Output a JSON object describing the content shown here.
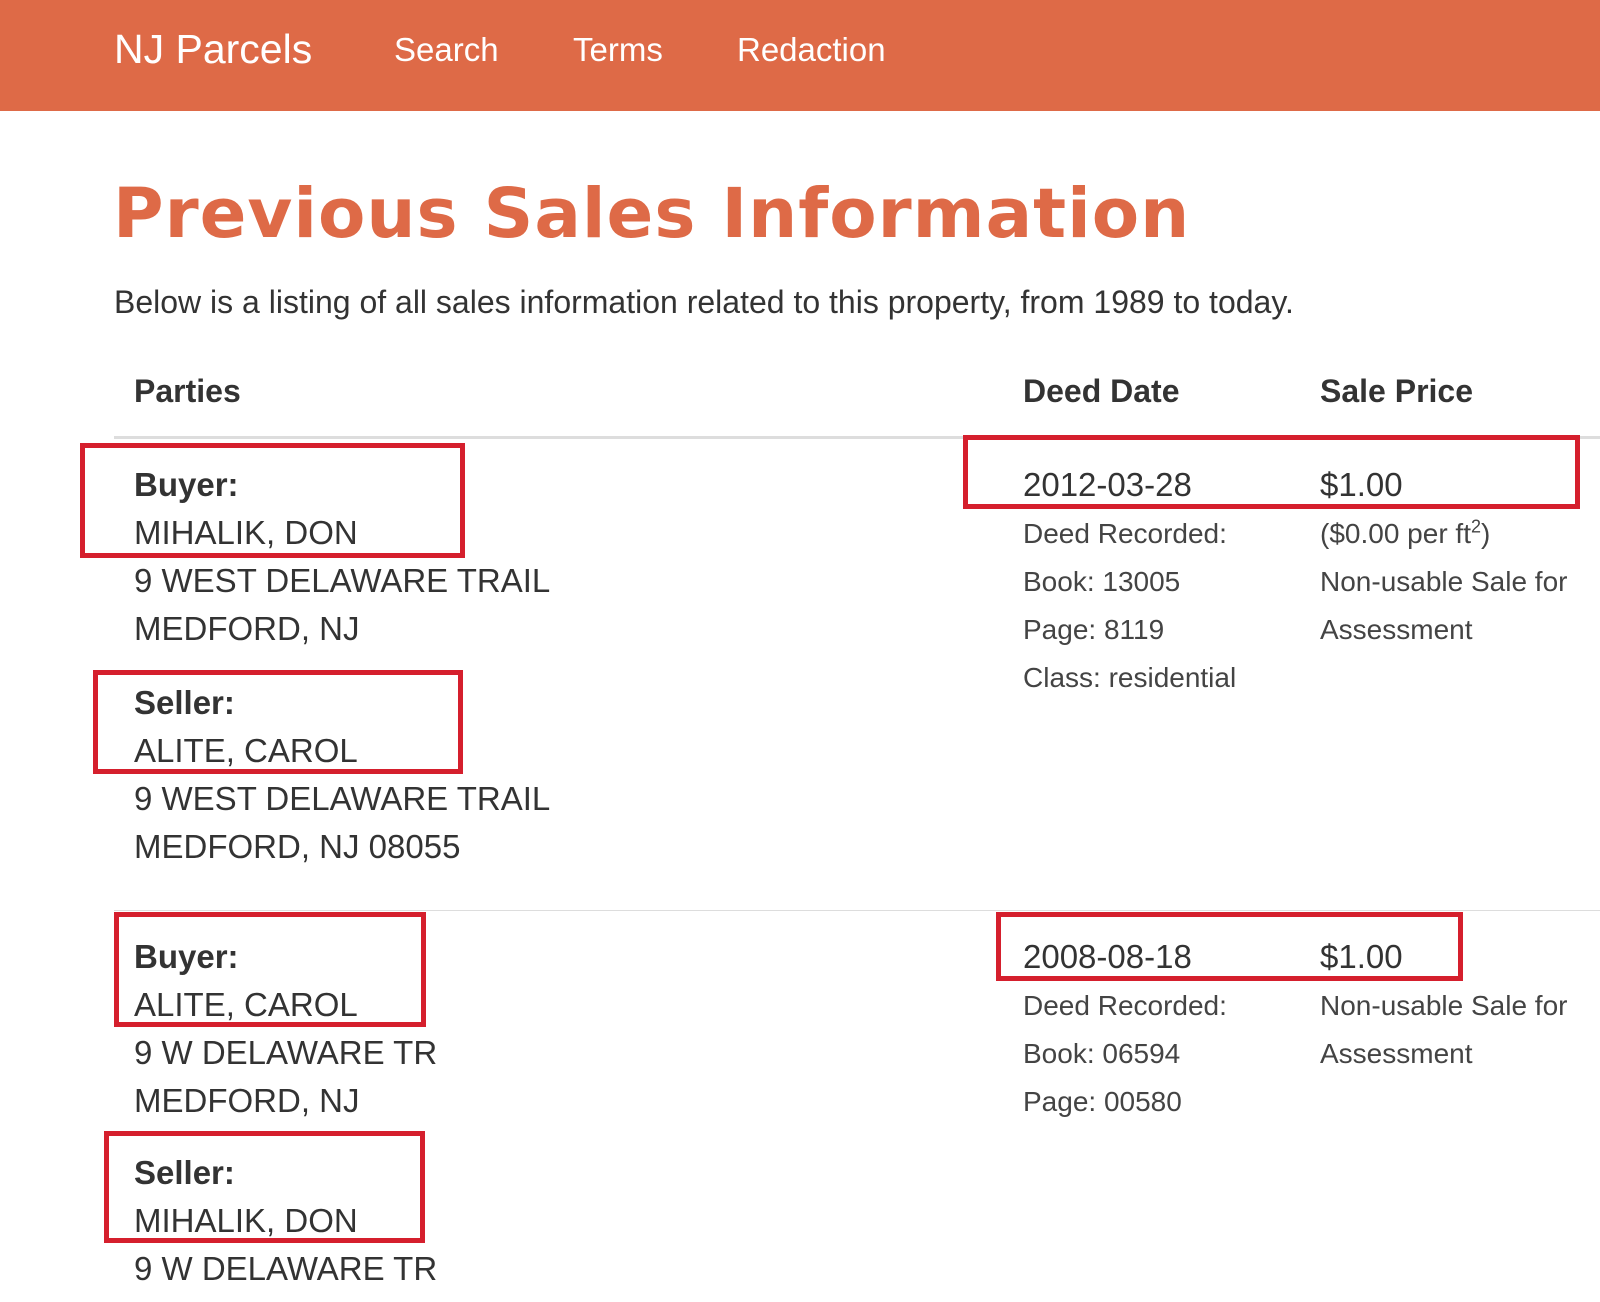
{
  "nav": {
    "brand": "NJ Parcels",
    "links": [
      "Search",
      "Terms",
      "Redaction"
    ]
  },
  "page": {
    "title": "Previous Sales Information",
    "intro": "Below is a listing of all sales information related to this property, from 1989 to today."
  },
  "table": {
    "headers": {
      "parties": "Parties",
      "deed_date": "Deed Date",
      "sale_price": "Sale Price"
    },
    "sales": [
      {
        "buyer_label": "Buyer:",
        "buyer_name": "MIHALIK, DON",
        "buyer_address": [
          "9 WEST DELAWARE TRAIL",
          "MEDFORD, NJ"
        ],
        "seller_label": "Seller:",
        "seller_name": "ALITE, CAROL",
        "seller_address": [
          "9 WEST DELAWARE TRAIL",
          "MEDFORD, NJ 08055"
        ],
        "deed_date": "2012-03-28",
        "deed_recorded": "Deed Recorded:",
        "book": "Book: 13005",
        "page": "Page: 8119",
        "class": "Class: residential",
        "sale_price": "$1.00",
        "per_ft_prefix": "($0.00 per ft",
        "per_ft_sup": "2",
        "per_ft_suffix": ")",
        "note": [
          "Non-usable Sale for",
          "Assessment"
        ]
      },
      {
        "buyer_label": "Buyer:",
        "buyer_name": "ALITE, CAROL",
        "buyer_address": [
          "9 W DELAWARE TR",
          "MEDFORD, NJ"
        ],
        "seller_label": "Seller:",
        "seller_name": "MIHALIK, DON",
        "seller_address": [
          "9 W DELAWARE TR"
        ],
        "deed_date": "2008-08-18",
        "deed_recorded": "Deed Recorded:",
        "book": "Book: 06594",
        "page": "Page: 00580",
        "sale_price": "$1.00",
        "note": [
          "Non-usable Sale for",
          "Assessment"
        ]
      }
    ]
  },
  "colors": {
    "brand": "#de6a47",
    "highlight": "#d51f2d"
  }
}
